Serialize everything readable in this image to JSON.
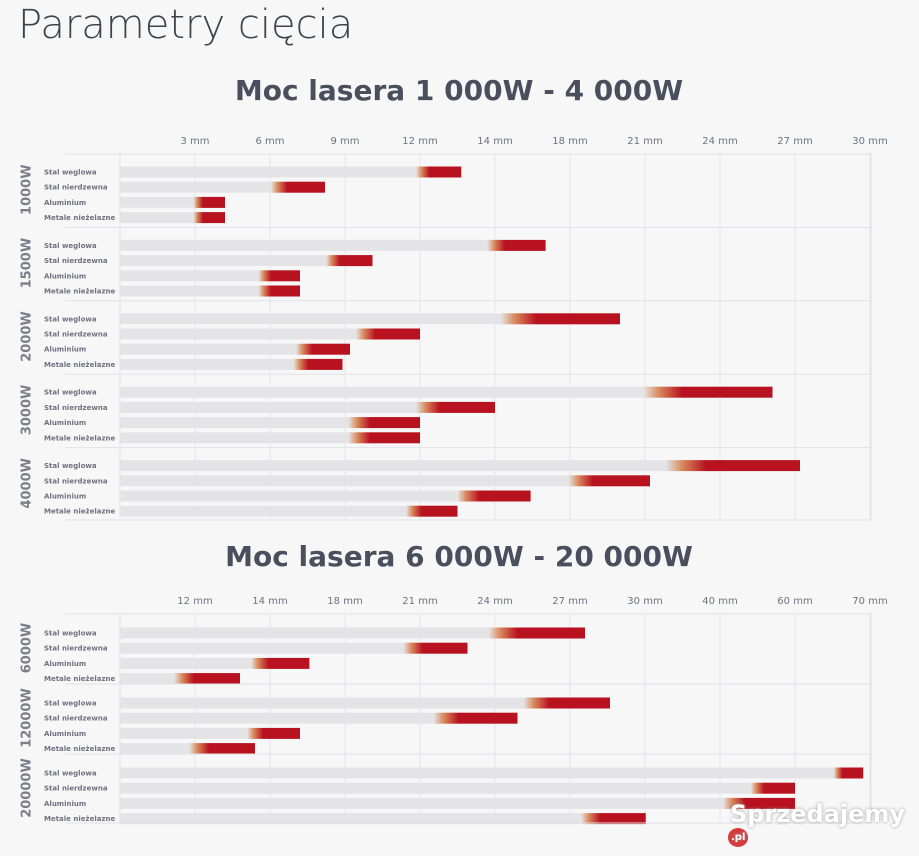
{
  "page_title": "Parametry cięcia",
  "watermark": "Sprzedajemy",
  "watermark_suffix": ".pl",
  "colors": {
    "bar_base": "#e4e4e6",
    "bar_range": "#b81220",
    "grid": "#e2e2e6"
  },
  "chart_data": [
    {
      "type": "bar",
      "orientation": "horizontal-range",
      "title": "Moc lasera 1 000W - 4 000W",
      "ticks": [
        "3 mm",
        "6 mm",
        "9 mm",
        "12 mm",
        "14 mm",
        "18 mm",
        "21 mm",
        "24 mm",
        "27 mm",
        "30 mm"
      ],
      "tick_values": [
        3,
        6,
        9,
        12,
        14,
        18,
        21,
        24,
        27,
        30
      ],
      "categories": [
        "Stal weglowa",
        "Stal nierdzewna",
        "Aluminium",
        "Metale nieżelazne"
      ],
      "groups": [
        {
          "name": "1000W",
          "ranges": [
            [
              12,
              13.1
            ],
            [
              6.2,
              8.2
            ],
            [
              3.1,
              4.2
            ],
            [
              3.1,
              4.2
            ]
          ]
        },
        {
          "name": "1500W",
          "ranges": [
            [
              13.9,
              16.7
            ],
            [
              8.4,
              10.1
            ],
            [
              5.7,
              7.2
            ],
            [
              5.7,
              7.2
            ]
          ]
        },
        {
          "name": "2000W",
          "ranges": [
            [
              14.5,
              20.0
            ],
            [
              9.6,
              12
            ],
            [
              7.2,
              9.2
            ],
            [
              7.1,
              8.9
            ]
          ]
        },
        {
          "name": "3000W",
          "ranges": [
            [
              21.1,
              26.1
            ],
            [
              12,
              14
            ],
            [
              9.3,
              12
            ],
            [
              9.3,
              12
            ]
          ]
        },
        {
          "name": "4000W",
          "ranges": [
            [
              22,
              27.2
            ],
            [
              18.1,
              21.2
            ],
            [
              13.1,
              15.9
            ],
            [
              11.6,
              13.0
            ]
          ]
        }
      ],
      "grid": true
    },
    {
      "type": "bar",
      "orientation": "horizontal-range",
      "title": "Moc lasera 6 000W - 20 000W",
      "ticks": [
        "12 mm",
        "14 mm",
        "18 mm",
        "21 mm",
        "24 mm",
        "27 mm",
        "30 mm",
        "40 mm",
        "60 mm",
        "70 mm"
      ],
      "tick_values": [
        12,
        14,
        18,
        21,
        24,
        27,
        30,
        40,
        60,
        70
      ],
      "categories": [
        "Stal weglowa",
        "Stal nierdzewna",
        "Aluminium",
        "Metale nieżelazne"
      ],
      "groups": [
        {
          "name": "6000W",
          "ranges": [
            [
              23.9,
              27.6
            ],
            [
              20.5,
              22.9
            ],
            [
              13.6,
              16.1
            ],
            [
              9.3,
              13.2
            ]
          ]
        },
        {
          "name": "12000W",
          "ranges": [
            [
              25.3,
              28.6
            ],
            [
              21.7,
              24.9
            ],
            [
              13.5,
              15.6
            ],
            [
              11.7,
              13.6
            ]
          ]
        },
        {
          "name": "20000W",
          "ranges": [
            [
              65.7,
              69.1
            ],
            [
              49.3,
              60
            ],
            [
              41.9,
              60
            ],
            [
              27.6,
              30.1
            ]
          ]
        }
      ],
      "grid": true
    }
  ]
}
